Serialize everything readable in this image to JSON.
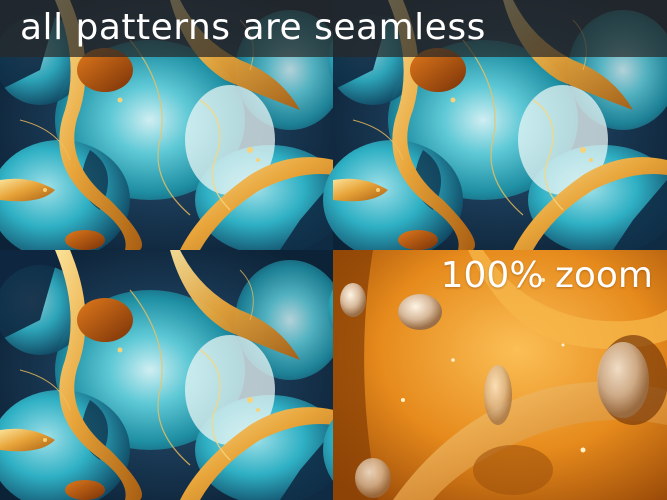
{
  "headline": "all patterns are seamless",
  "zoom_label": "100% zoom",
  "colors": {
    "teal": "#2fb0c4",
    "deep_navy": "#14304a",
    "gold": "#e8a53a",
    "amber": "#e28a1e",
    "band": "#282828"
  },
  "artwork": {
    "name": "alcohol-ink marble pattern",
    "tiles_visible": 2
  }
}
